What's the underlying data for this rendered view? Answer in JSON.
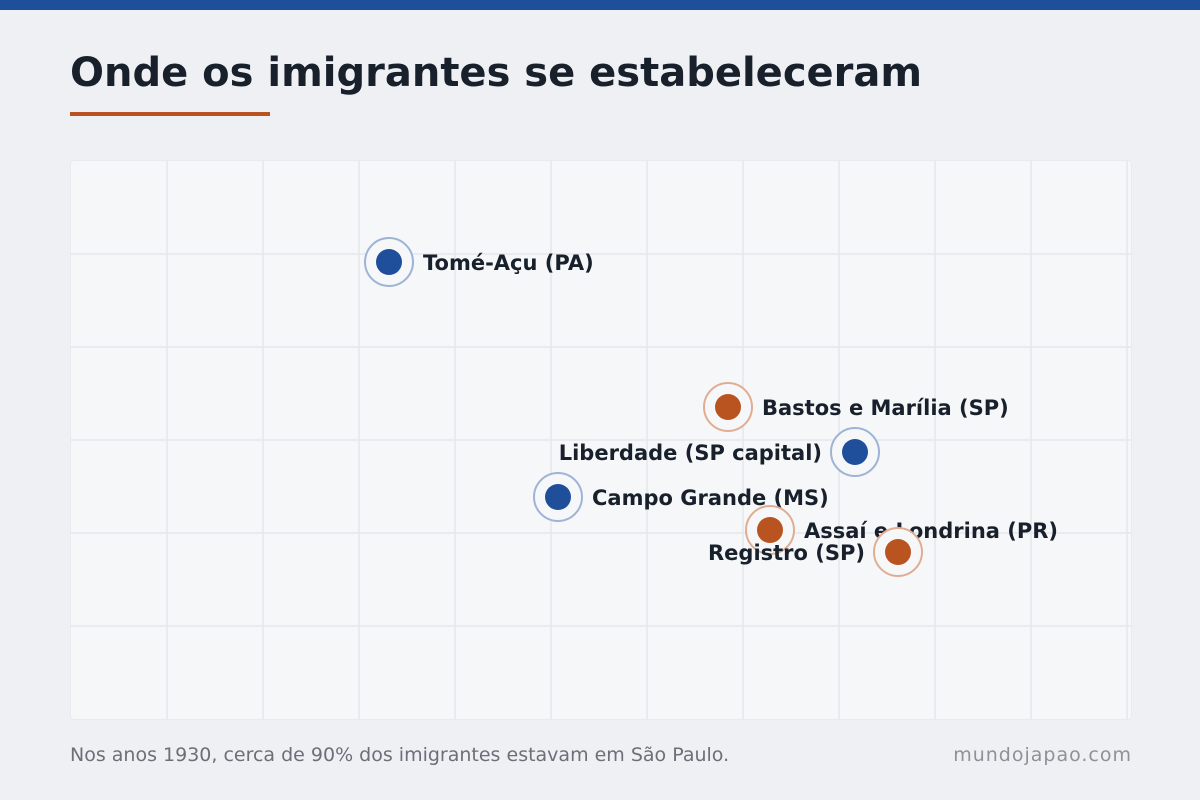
{
  "title": "Onde os imigrantes se estabeleceram",
  "caption": "Nos anos 1930, cerca de 90% dos imigrantes estavam em São Paulo.",
  "source": "mundojapao.com",
  "colors": {
    "accent_blue": "#1f4e9b",
    "accent_orange": "#b9531f",
    "text": "#18202c"
  },
  "places": [
    {
      "name": "Tomé-Açu (PA)",
      "group": "blue"
    },
    {
      "name": "Bastos e Marília (SP)",
      "group": "orange"
    },
    {
      "name": "Liberdade (SP capital)",
      "group": "blue"
    },
    {
      "name": "Campo Grande (MS)",
      "group": "blue"
    },
    {
      "name": "Assaí e Londrina (PR)",
      "group": "orange"
    },
    {
      "name": "Registro (SP)",
      "group": "orange"
    }
  ]
}
